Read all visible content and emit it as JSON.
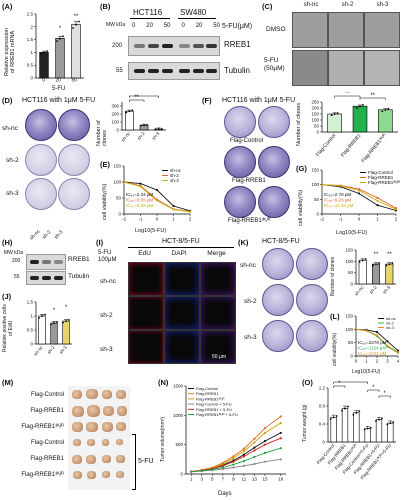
{
  "panels": {
    "A": {
      "label": "(A)",
      "ylabel": "Relative expression\nof RREB1 mRNA",
      "xtitle": "5-FU",
      "ticks": [
        "0",
        "20",
        "50"
      ],
      "y_ticks": [
        "0.0",
        "0.5",
        "1.0",
        "1.5",
        "2.0",
        "2.5"
      ],
      "stars": [
        "*",
        "**"
      ]
    },
    "B": {
      "label": "(B)",
      "cell1": "HCT116",
      "cell2": "SW480",
      "mw": "MW kDa",
      "doses": [
        "0",
        "20",
        "50",
        "0",
        "20",
        "50"
      ],
      "unit": "5-FU(μM)",
      "rreb1": "RREB1",
      "tubulin": "Tubulin",
      "kda1": "200",
      "kda2": "55"
    },
    "C": {
      "label": "(C)",
      "cols": [
        "sh-nc",
        "sh-2",
        "sh-3"
      ],
      "row1": "DMSO",
      "row2": "5-FU\n(50μM)"
    },
    "D": {
      "label": "(D)",
      "title": "HCT116 with 1μM 5-FU",
      "rows": [
        "sh-nc",
        "sh-2",
        "sh-3"
      ],
      "ylabel": "Number of clones",
      "cats": [
        "sh-nc",
        "sh-2",
        "sh-3"
      ],
      "stars": [
        "**",
        "***"
      ]
    },
    "E": {
      "label": "(E)",
      "ylabel": "cell viability(%)",
      "xlabel": "Log10(5-FU)",
      "legend": [
        "sh-nc",
        "sh-2",
        "sh-3"
      ],
      "ic": [
        "IC₅₀=2.34 μM",
        "IC₅₀=0.55 μM",
        "IC₅₀=0.56 μM"
      ]
    },
    "F": {
      "label": "(F)",
      "title": "HCT116 with 1μM 5-FU",
      "rows": [
        "Flag-Control",
        "Flag-RREB1",
        "Flag-RREB1³ᴷ/ᴿ"
      ],
      "ylabel": "Number of clones",
      "cats": [
        "Flag-Control",
        "Flag-RREB1",
        "Flag-RREB1³ᴷ/ᴿ"
      ],
      "stars": [
        "**",
        "**"
      ]
    },
    "G": {
      "label": "(G)",
      "ylabel": "cell viability(%)",
      "xlabel": "Log10(5-FU)",
      "legend": [
        "Flag-Control",
        "Flag-RREB1",
        "Flag-RREB1³ᴷ/ᴿ"
      ],
      "ic": [
        "IC₅₀=2.78 μM",
        "IC₅₀=6.28 μM",
        "IC₅₀=11.25 μM"
      ]
    },
    "H": {
      "label": "(H)",
      "mw": "MW kDa",
      "cols": [
        "sh-nc",
        "sh-2",
        "sh-3"
      ],
      "rreb1": "RREB1",
      "tubulin": "Tubulin",
      "kda1": "200",
      "kda2": "55"
    },
    "I": {
      "label": "(I)",
      "title": "HCT-8/5-FU",
      "dose": "5-FU\n100μM",
      "cols": [
        "EdU",
        "DAPI",
        "Merge"
      ],
      "rows": [
        "sh-nc",
        "sh-2",
        "sh-3"
      ],
      "scale": "50 μm"
    },
    "J": {
      "label": "(J)",
      "ylabel": "Relative positive cells\nof EdU",
      "cats": [
        "sh-nc",
        "sh-2",
        "sh-3"
      ],
      "stars": [
        "*",
        "*"
      ]
    },
    "K": {
      "label": "(K)",
      "title": "HCT-8/5-FU",
      "rows": [
        "sh-nc",
        "sh-2",
        "sh-3"
      ],
      "ylabel": "Number of clones",
      "cats": [
        "sh-nc",
        "sh-2",
        "sh-3"
      ],
      "stars": [
        "**",
        "**"
      ]
    },
    "L": {
      "label": "(L)",
      "ylabel": "cell viability(%)",
      "xlabel": "Log10(5-FU)",
      "legend": [
        "sh-nc",
        "sh-2",
        "sh-3"
      ],
      "ic": [
        "IC₅₀=2378 μM",
        "IC₅₀=1154 μM",
        "IC₅₀=1221 μM"
      ]
    },
    "M": {
      "label": "(M)",
      "rows": [
        "Flag-Control",
        "Flag-RREB1",
        "Flag-RREB1³ᴷ/ᴿ",
        "Flag-Control",
        "Flag-RREB1",
        "Flag-RREB1³ᴷ/ᴿ"
      ],
      "side": "5-FU"
    },
    "N": {
      "label": "(N)",
      "ylabel": "Tumor volume(mm³)",
      "xlabel": "Days",
      "legend": [
        "Flag-Control",
        "Flag-RREB1",
        "Flag-RREB1³ᴷ/ᴿ",
        "Flag-Control + 5-FU",
        "Flag-RREB1 + 5-FU",
        "Flag-RREB1³ᴷ/ᴿ + 5-FU"
      ],
      "x_ticks": [
        "1",
        "3",
        "5",
        "7",
        "9",
        "11",
        "13",
        "15",
        "18"
      ]
    },
    "O": {
      "label": "(O)",
      "ylabel": "Tumor weight (g)",
      "cats": [
        "Flag-Control",
        "Flag-RREB1",
        "Flag-RREB1³ᴷ/ᴿ",
        "Flag-Control+5-FU",
        "Flag-RREB1+5-FU",
        "Flag-RREB1³ᴷ/ᴿ+5-FU"
      ],
      "stars": [
        "*",
        "**",
        "*",
        "*"
      ]
    }
  },
  "chart_data": [
    {
      "id": "A",
      "type": "bar",
      "categories": [
        "0",
        "20",
        "50"
      ],
      "values": [
        1.0,
        1.55,
        2.1
      ],
      "errors": [
        0.05,
        0.08,
        0.1
      ],
      "ylim": [
        0,
        2.5
      ],
      "colors": [
        "#222222",
        "#9a9a9a",
        "#e0e0e0"
      ]
    },
    {
      "id": "D",
      "type": "bar",
      "categories": [
        "sh-nc",
        "sh-2",
        "sh-3"
      ],
      "values": [
        235,
        60,
        12
      ],
      "ylim": [
        0,
        350
      ],
      "colors": [
        "#ffffff",
        "#9a9a9a",
        "#c8c8c8"
      ]
    },
    {
      "id": "E",
      "type": "line",
      "x": [
        -2,
        -1,
        0,
        1,
        2
      ],
      "series": [
        {
          "name": "sh-nc",
          "values": [
            100,
            95,
            75,
            25,
            10
          ],
          "color": "#111111"
        },
        {
          "name": "sh-2",
          "values": [
            100,
            88,
            45,
            15,
            8
          ],
          "color": "#e06030"
        },
        {
          "name": "sh-3",
          "values": [
            100,
            86,
            42,
            14,
            7
          ],
          "color": "#c8b000"
        }
      ],
      "ylim": [
        0,
        150
      ],
      "xlim": [
        -2,
        2
      ]
    },
    {
      "id": "F",
      "type": "bar",
      "categories": [
        "Flag-Control",
        "Flag-RREB1",
        "Flag-RREB1 3K/R"
      ],
      "values": [
        150,
        215,
        185
      ],
      "ylim": [
        0,
        250
      ],
      "colors": [
        "#d4f0d4",
        "#22b14c",
        "#8fd890"
      ]
    },
    {
      "id": "G",
      "type": "line",
      "x": [
        -2,
        -1,
        0,
        1,
        2
      ],
      "series": [
        {
          "name": "Flag-Control",
          "values": [
            100,
            93,
            70,
            30,
            12
          ],
          "color": "#111111"
        },
        {
          "name": "Flag-RREB1",
          "values": [
            100,
            97,
            85,
            55,
            20
          ],
          "color": "#e06030"
        },
        {
          "name": "Flag-RREB1 3K/R",
          "values": [
            100,
            96,
            80,
            45,
            16
          ],
          "color": "#c8b000"
        }
      ],
      "ylim": [
        0,
        150
      ],
      "xlim": [
        -2,
        2
      ]
    },
    {
      "id": "J",
      "type": "bar",
      "categories": [
        "sh-nc",
        "sh-2",
        "sh-3"
      ],
      "values": [
        1.0,
        0.75,
        0.82
      ],
      "ylim": [
        0,
        1.5
      ],
      "colors": [
        "#ffffff",
        "#999999",
        "#e8d36a"
      ]
    },
    {
      "id": "K",
      "type": "bar",
      "categories": [
        "sh-nc",
        "sh-2",
        "sh-3"
      ],
      "values": [
        105,
        88,
        88
      ],
      "ylim": [
        0,
        150
      ],
      "colors": [
        "#ffffff",
        "#999999",
        "#e8d36a"
      ]
    },
    {
      "id": "L",
      "type": "line",
      "x": [
        0,
        1,
        2,
        3,
        4
      ],
      "series": [
        {
          "name": "sh-nc",
          "values": [
            100,
            98,
            90,
            55,
            20
          ],
          "color": "#111111"
        },
        {
          "name": "sh-2",
          "values": [
            100,
            95,
            75,
            35,
            12
          ],
          "color": "#22b14c"
        },
        {
          "name": "sh-3",
          "values": [
            100,
            95,
            78,
            38,
            14
          ],
          "color": "#e09020"
        }
      ],
      "ylim": [
        0,
        150
      ],
      "xlim": [
        0,
        4
      ]
    },
    {
      "id": "N",
      "type": "line",
      "x": [
        1,
        3,
        5,
        7,
        9,
        11,
        13,
        15,
        18
      ],
      "series": [
        {
          "name": "Flag-Control",
          "values": [
            40,
            60,
            90,
            150,
            230,
            330,
            450,
            560,
            700
          ],
          "color": "#111111"
        },
        {
          "name": "Flag-RREB1",
          "values": [
            40,
            70,
            110,
            190,
            300,
            430,
            600,
            780,
            980
          ],
          "color": "#e07020"
        },
        {
          "name": "Flag-RREB1 3K/R",
          "values": [
            40,
            65,
            100,
            170,
            270,
            390,
            540,
            700,
            870
          ],
          "color": "#c8a000"
        },
        {
          "name": "Flag-Control + 5-FU",
          "values": [
            40,
            50,
            65,
            85,
            110,
            140,
            170,
            210,
            250
          ],
          "color": "#888888"
        },
        {
          "name": "Flag-RREB1 + 5-FU",
          "values": [
            40,
            60,
            90,
            140,
            210,
            300,
            400,
            500,
            610
          ],
          "color": "#d02020"
        },
        {
          "name": "Flag-RREB1 3K/R + 5-FU",
          "values": [
            40,
            55,
            75,
            110,
            160,
            220,
            290,
            360,
            440
          ],
          "color": "#20a040"
        }
      ],
      "ylim": [
        0,
        1500
      ]
    },
    {
      "id": "O",
      "type": "bar",
      "categories": [
        "Flag-Control",
        "Flag-RREB1",
        "Flag-RREB1 3K/R",
        "Flag-Control+5-FU",
        "Flag-RREB1+5-FU",
        "Flag-RREB1 3K/R+5-FU"
      ],
      "values": [
        0.55,
        0.75,
        0.65,
        0.3,
        0.5,
        0.42
      ],
      "ylim": [
        0,
        1.2
      ]
    }
  ]
}
